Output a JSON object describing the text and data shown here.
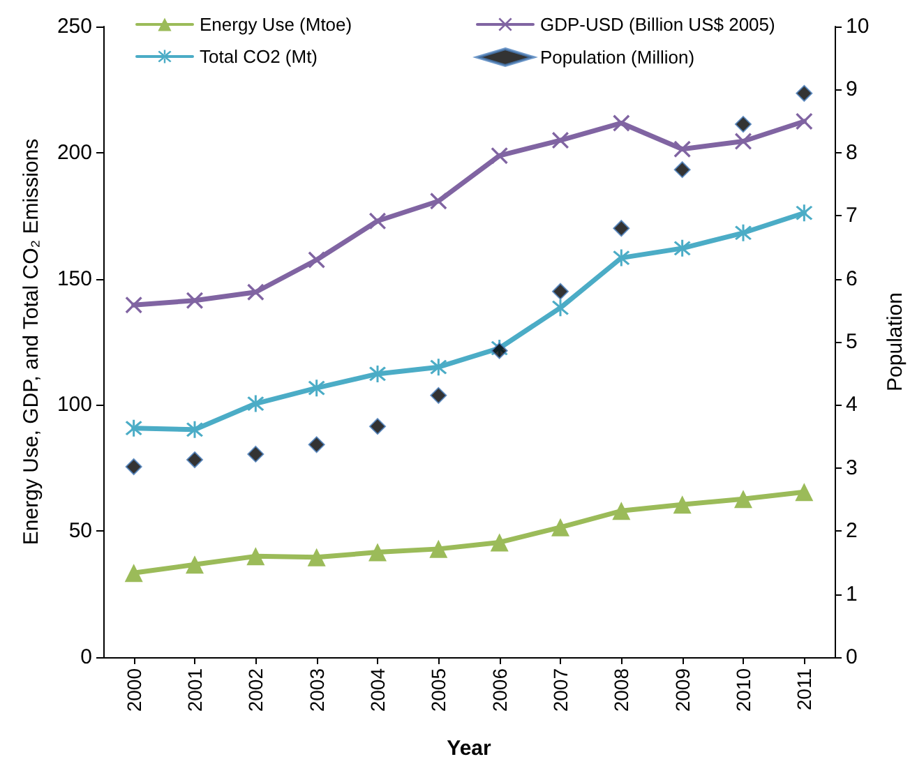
{
  "chart_data": {
    "type": "line",
    "xlabel": "Year",
    "ylabel": "Energy Use, GDP, and Total CO₂ Emissions",
    "y2label": "Population",
    "categories": [
      "2000",
      "2001",
      "2002",
      "2003",
      "2004",
      "2005",
      "2006",
      "2007",
      "2008",
      "2009",
      "2010",
      "2011"
    ],
    "series": [
      {
        "name": "Energy Use (Mtoe)",
        "color": "#9bbb59",
        "marker": "triangle",
        "values": [
          33.4,
          36.7,
          40,
          39.6,
          41.6,
          42.9,
          45.5,
          51.5,
          58,
          60.5,
          62.7,
          65.5
        ]
      },
      {
        "name": "GDP-USD (Billion US$ 2005)",
        "color": "#8064a2",
        "marker": "cross",
        "values": [
          139.6,
          141.4,
          144.7,
          157.5,
          172.9,
          180.8,
          198.8,
          204.9,
          211.7,
          201.4,
          204.5,
          212.4
        ]
      },
      {
        "name": "Total CO2 (Mt)",
        "color": "#4bacc6",
        "marker": "star",
        "values": [
          90.8,
          90.2,
          100.5,
          106.7,
          112.3,
          115,
          122.5,
          138.5,
          158.3,
          162.1,
          168.2,
          176.1
        ]
      },
      {
        "name": "Population (Million)",
        "type": "scatter",
        "axis": "y2",
        "color": "#000000",
        "marker": "diamond",
        "values": [
          3.02,
          3.13,
          3.22,
          3.37,
          3.66,
          4.15,
          4.86,
          5.8,
          6.8,
          7.73,
          8.45,
          8.94
        ]
      }
    ],
    "ylim": [
      0,
      250
    ],
    "yticks": [
      0,
      50,
      100,
      150,
      200,
      250
    ],
    "y2lim": [
      0,
      10
    ],
    "y2ticks": [
      0,
      1,
      2,
      3,
      4,
      5,
      6,
      7,
      8,
      9,
      10
    ],
    "grid": false,
    "legend": "top"
  }
}
